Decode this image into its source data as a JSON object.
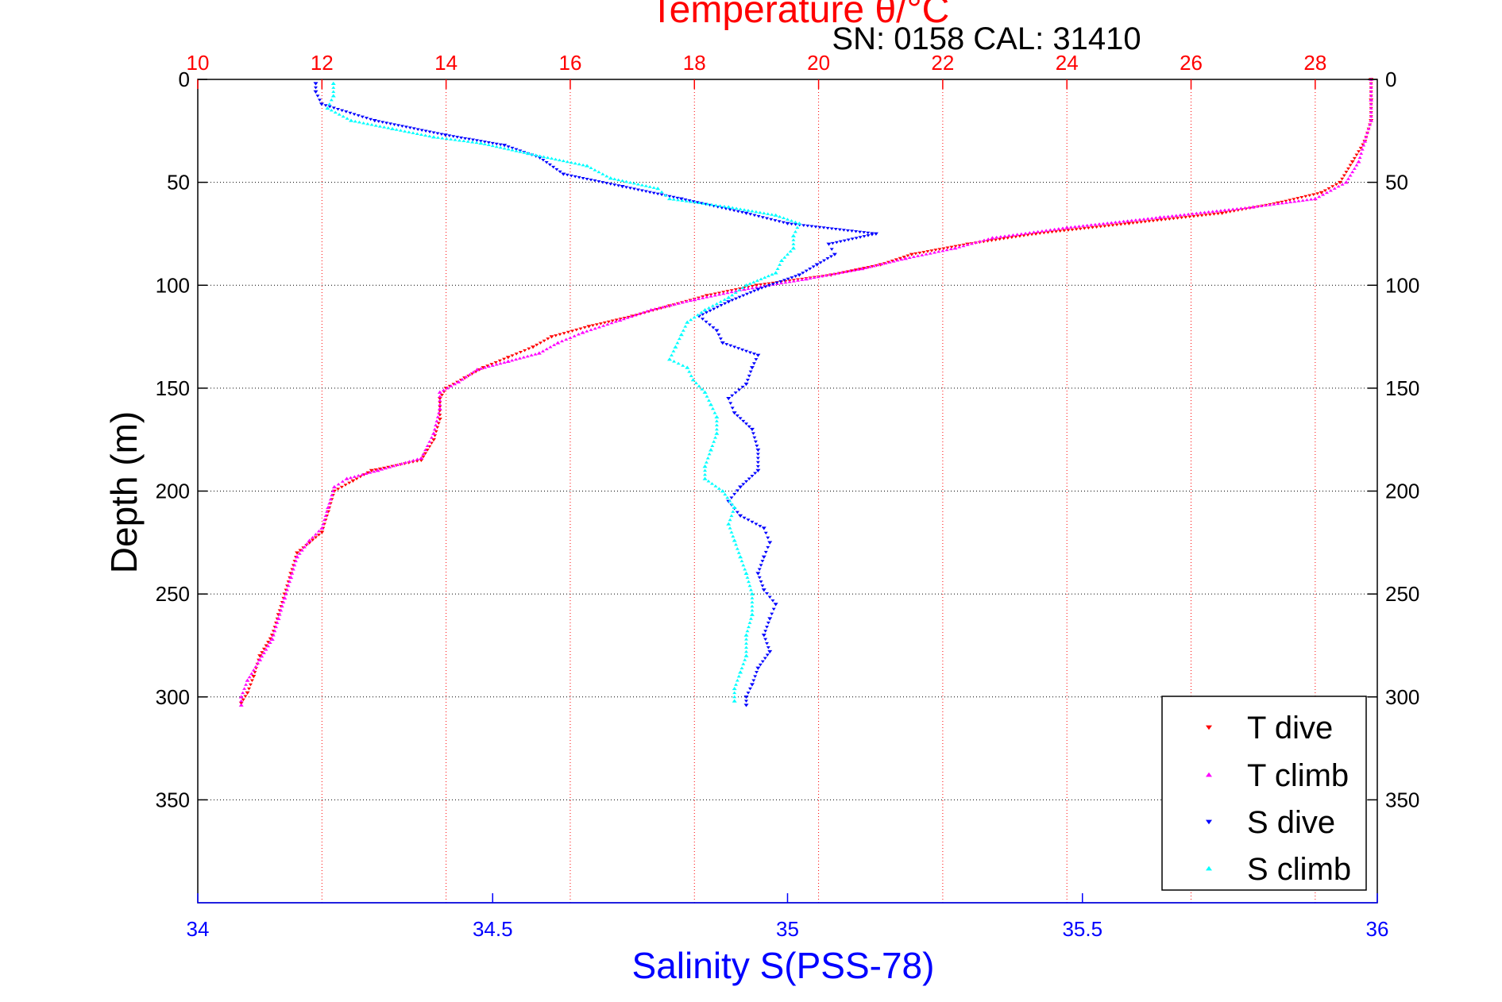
{
  "header": {
    "title": "Temperature θ/°C",
    "subtitle": "SN: 0158  CAL: 31410"
  },
  "colors": {
    "t_dive": "#ff0000",
    "t_climb": "#ff00ff",
    "s_dive": "#0000ff",
    "s_climb": "#00ffff",
    "temperature_axis": "#ff0000",
    "salinity_axis": "#0000ff",
    "grid_temperature": "#ff0000",
    "grid_depth": "#000000"
  },
  "chart_data": {
    "type": "scatter",
    "title": "Temperature θ/°C",
    "subtitle": "SN: 0158  CAL: 31410",
    "ylabel": "Depth (m)",
    "xlabel": "Salinity S(PSS-78)",
    "y_axis": {
      "range": [
        0,
        400
      ],
      "reversed": true,
      "ticks": [
        0,
        50,
        100,
        150,
        200,
        250,
        300,
        350
      ],
      "tick_labels": [
        "0",
        "50",
        "100",
        "150",
        "200",
        "250",
        "300",
        "350"
      ],
      "grid": true
    },
    "temperature_axis": {
      "position": "top",
      "range": [
        10,
        29
      ],
      "ticks": [
        10,
        12,
        14,
        16,
        18,
        20,
        22,
        24,
        26,
        28
      ],
      "tick_labels": [
        "10",
        "12",
        "14",
        "16",
        "18",
        "20",
        "22",
        "24",
        "26",
        "28"
      ],
      "grid": true
    },
    "salinity_axis": {
      "position": "bottom",
      "range": [
        34,
        36
      ],
      "ticks": [
        34,
        34.5,
        35,
        35.5,
        36
      ],
      "tick_labels": [
        "34",
        "34.5",
        "35",
        "35.5",
        "36"
      ]
    },
    "legend": {
      "position": "bottom-right",
      "entries": [
        "T dive",
        "T climb",
        "S dive",
        "S climb"
      ]
    },
    "series": [
      {
        "name": "T dive",
        "axis": "temperature",
        "marker": "triangle-down",
        "points": [
          [
            28.9,
            0
          ],
          [
            28.9,
            10
          ],
          [
            28.9,
            20
          ],
          [
            28.8,
            30
          ],
          [
            28.6,
            40
          ],
          [
            28.4,
            50
          ],
          [
            28.1,
            55
          ],
          [
            27.4,
            60
          ],
          [
            26.5,
            65
          ],
          [
            25.0,
            70
          ],
          [
            23.5,
            75
          ],
          [
            22.4,
            80
          ],
          [
            21.5,
            85
          ],
          [
            21.0,
            90
          ],
          [
            20.2,
            95
          ],
          [
            19.0,
            100
          ],
          [
            18.2,
            105
          ],
          [
            17.6,
            110
          ],
          [
            17.0,
            115
          ],
          [
            16.3,
            120
          ],
          [
            15.7,
            125
          ],
          [
            15.4,
            130
          ],
          [
            15.0,
            135
          ],
          [
            14.6,
            140
          ],
          [
            14.3,
            145
          ],
          [
            14.0,
            150
          ],
          [
            13.9,
            155
          ],
          [
            13.9,
            165
          ],
          [
            13.8,
            175
          ],
          [
            13.6,
            185
          ],
          [
            12.8,
            190
          ],
          [
            12.5,
            195
          ],
          [
            12.2,
            200
          ],
          [
            12.1,
            210
          ],
          [
            12.0,
            220
          ],
          [
            11.8,
            225
          ],
          [
            11.6,
            230
          ],
          [
            11.5,
            240
          ],
          [
            11.4,
            250
          ],
          [
            11.3,
            260
          ],
          [
            11.2,
            270
          ],
          [
            11.0,
            280
          ],
          [
            10.9,
            290
          ],
          [
            10.8,
            298
          ],
          [
            10.7,
            303
          ]
        ]
      },
      {
        "name": "T climb",
        "axis": "temperature",
        "marker": "triangle-up",
        "points": [
          [
            28.9,
            0
          ],
          [
            28.9,
            10
          ],
          [
            28.9,
            20
          ],
          [
            28.8,
            30
          ],
          [
            28.7,
            40
          ],
          [
            28.5,
            50
          ],
          [
            28.0,
            58
          ],
          [
            27.0,
            62
          ],
          [
            25.5,
            67
          ],
          [
            24.0,
            72
          ],
          [
            22.8,
            77
          ],
          [
            22.2,
            82
          ],
          [
            21.4,
            87
          ],
          [
            20.7,
            92
          ],
          [
            19.8,
            97
          ],
          [
            18.8,
            102
          ],
          [
            18.0,
            107
          ],
          [
            17.3,
            112
          ],
          [
            16.8,
            117
          ],
          [
            16.2,
            123
          ],
          [
            15.8,
            128
          ],
          [
            15.5,
            133
          ],
          [
            15.0,
            137
          ],
          [
            14.5,
            141
          ],
          [
            14.2,
            147
          ],
          [
            13.9,
            152
          ],
          [
            13.9,
            160
          ],
          [
            13.8,
            172
          ],
          [
            13.6,
            184
          ],
          [
            12.9,
            190
          ],
          [
            12.4,
            194
          ],
          [
            12.2,
            198
          ],
          [
            12.1,
            208
          ],
          [
            12.0,
            218
          ],
          [
            11.8,
            224
          ],
          [
            11.6,
            232
          ],
          [
            11.5,
            242
          ],
          [
            11.4,
            252
          ],
          [
            11.3,
            262
          ],
          [
            11.2,
            272
          ],
          [
            11.0,
            282
          ],
          [
            10.8,
            292
          ],
          [
            10.7,
            300
          ],
          [
            10.7,
            304
          ]
        ]
      },
      {
        "name": "S dive",
        "axis": "salinity",
        "marker": "triangle-down",
        "points": [
          [
            34.2,
            2
          ],
          [
            34.2,
            6
          ],
          [
            34.21,
            12
          ],
          [
            34.3,
            20
          ],
          [
            34.42,
            27
          ],
          [
            34.52,
            32
          ],
          [
            34.58,
            38
          ],
          [
            34.62,
            46
          ],
          [
            34.72,
            52
          ],
          [
            34.82,
            58
          ],
          [
            34.93,
            65
          ],
          [
            35.0,
            70
          ],
          [
            35.15,
            75
          ],
          [
            35.07,
            80
          ],
          [
            35.08,
            85
          ],
          [
            35.05,
            90
          ],
          [
            35.02,
            95
          ],
          [
            34.95,
            102
          ],
          [
            34.9,
            108
          ],
          [
            34.85,
            115
          ],
          [
            34.88,
            122
          ],
          [
            34.89,
            128
          ],
          [
            34.95,
            134
          ],
          [
            34.94,
            140
          ],
          [
            34.93,
            148
          ],
          [
            34.9,
            155
          ],
          [
            34.91,
            162
          ],
          [
            34.94,
            170
          ],
          [
            34.95,
            180
          ],
          [
            34.95,
            190
          ],
          [
            34.92,
            198
          ],
          [
            34.9,
            205
          ],
          [
            34.92,
            212
          ],
          [
            34.96,
            218
          ],
          [
            34.97,
            225
          ],
          [
            34.96,
            232
          ],
          [
            34.95,
            240
          ],
          [
            34.96,
            248
          ],
          [
            34.98,
            255
          ],
          [
            34.97,
            262
          ],
          [
            34.96,
            270
          ],
          [
            34.97,
            278
          ],
          [
            34.95,
            286
          ],
          [
            34.94,
            294
          ],
          [
            34.93,
            300
          ],
          [
            34.93,
            304
          ]
        ]
      },
      {
        "name": "S climb",
        "axis": "salinity",
        "marker": "triangle-up",
        "points": [
          [
            34.23,
            2
          ],
          [
            34.23,
            8
          ],
          [
            34.22,
            14
          ],
          [
            34.26,
            20
          ],
          [
            34.33,
            24
          ],
          [
            34.4,
            28
          ],
          [
            34.48,
            31
          ],
          [
            34.56,
            36
          ],
          [
            34.66,
            42
          ],
          [
            34.7,
            48
          ],
          [
            34.78,
            53
          ],
          [
            34.8,
            58
          ],
          [
            34.9,
            62
          ],
          [
            34.98,
            66
          ],
          [
            35.02,
            70
          ],
          [
            35.01,
            76
          ],
          [
            35.01,
            82
          ],
          [
            34.99,
            88
          ],
          [
            34.98,
            94
          ],
          [
            34.93,
            100
          ],
          [
            34.9,
            106
          ],
          [
            34.86,
            112
          ],
          [
            34.83,
            118
          ],
          [
            34.82,
            124
          ],
          [
            34.81,
            130
          ],
          [
            34.8,
            136
          ],
          [
            34.83,
            140
          ],
          [
            34.84,
            146
          ],
          [
            34.86,
            152
          ],
          [
            34.87,
            158
          ],
          [
            34.88,
            164
          ],
          [
            34.88,
            172
          ],
          [
            34.87,
            180
          ],
          [
            34.86,
            188
          ],
          [
            34.86,
            194
          ],
          [
            34.89,
            200
          ],
          [
            34.91,
            208
          ],
          [
            34.9,
            216
          ],
          [
            34.91,
            224
          ],
          [
            34.92,
            232
          ],
          [
            34.93,
            240
          ],
          [
            34.94,
            250
          ],
          [
            34.94,
            260
          ],
          [
            34.93,
            270
          ],
          [
            34.93,
            280
          ],
          [
            34.92,
            288
          ],
          [
            34.91,
            296
          ],
          [
            34.91,
            302
          ]
        ]
      }
    ]
  }
}
